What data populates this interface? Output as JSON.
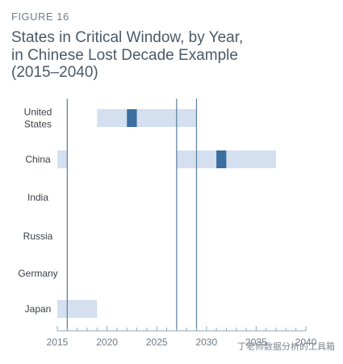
{
  "figure_label": "FIGURE 16",
  "title_lines": [
    "States in Critical Window, by Year,",
    "in Chinese Lost Decade Example",
    "(2015–2040)"
  ],
  "watermark": "丁老师数据分析的工具箱",
  "colors": {
    "window_bar": "#d4e0f0",
    "peak_bar": "#3c6ea0",
    "vline": "#5b7d9e",
    "axis": "#8fa6bc",
    "tick_label": "#6b7a86"
  },
  "chart_data": {
    "type": "range-bar",
    "xlim": [
      2015,
      2040
    ],
    "x_ticks": [
      2015,
      2020,
      2025,
      2030,
      2035,
      2040
    ],
    "x_tick_labels": [
      "2015",
      "2020",
      "2025",
      "2030",
      "2035",
      "2040"
    ],
    "categories": [
      {
        "label_lines": [
          "United",
          "States"
        ],
        "window": [
          2019,
          2029
        ],
        "peak": [
          2022,
          2023
        ]
      },
      {
        "label_lines": [
          "China"
        ],
        "window": [
          2015,
          2016
        ],
        "window2": [
          2027,
          2037
        ],
        "peak": [
          2031,
          2032
        ]
      },
      {
        "label_lines": [
          "India"
        ]
      },
      {
        "label_lines": [
          "Russia"
        ]
      },
      {
        "label_lines": [
          "Germany"
        ]
      },
      {
        "label_lines": [
          "Japan"
        ],
        "window": [
          2015,
          2019
        ]
      }
    ],
    "vertical_lines": [
      2016,
      2027,
      2029
    ],
    "grid": false,
    "legend": "none"
  }
}
